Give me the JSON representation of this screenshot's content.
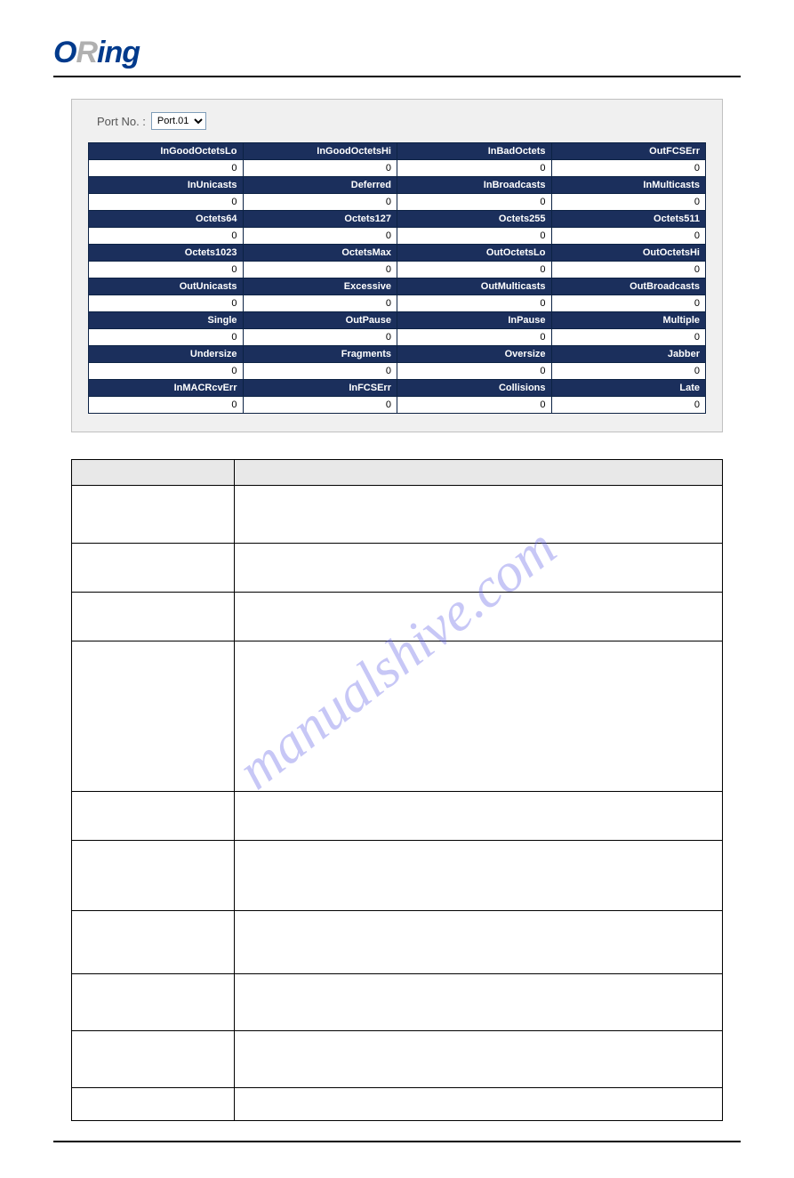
{
  "logo": {
    "o": "O",
    "r": "R",
    "rest": "ing"
  },
  "watermark": "manualshive.com",
  "port_selector": {
    "label": "Port No. :",
    "value": "Port.01"
  },
  "counters": {
    "rows": [
      {
        "headers": [
          "InGoodOctetsLo",
          "InGoodOctetsHi",
          "InBadOctets",
          "OutFCSErr"
        ],
        "values": [
          "0",
          "0",
          "0",
          "0"
        ]
      },
      {
        "headers": [
          "InUnicasts",
          "Deferred",
          "InBroadcasts",
          "InMulticasts"
        ],
        "values": [
          "0",
          "0",
          "0",
          "0"
        ]
      },
      {
        "headers": [
          "Octets64",
          "Octets127",
          "Octets255",
          "Octets511"
        ],
        "values": [
          "0",
          "0",
          "0",
          "0"
        ]
      },
      {
        "headers": [
          "Octets1023",
          "OctetsMax",
          "OutOctetsLo",
          "OutOctetsHi"
        ],
        "values": [
          "0",
          "0",
          "0",
          "0"
        ]
      },
      {
        "headers": [
          "OutUnicasts",
          "Excessive",
          "OutMulticasts",
          "OutBroadcasts"
        ],
        "values": [
          "0",
          "0",
          "0",
          "0"
        ]
      },
      {
        "headers": [
          "Single",
          "OutPause",
          "InPause",
          "Multiple"
        ],
        "values": [
          "0",
          "0",
          "0",
          "0"
        ]
      },
      {
        "headers": [
          "Undersize",
          "Fragments",
          "Oversize",
          "Jabber"
        ],
        "values": [
          "0",
          "0",
          "0",
          "0"
        ]
      },
      {
        "headers": [
          "InMACRcvErr",
          "InFCSErr",
          "Collisions",
          "Late"
        ],
        "values": [
          "0",
          "0",
          "0",
          "0"
        ]
      }
    ],
    "header_bg": "#1b2f5c",
    "header_fg": "#ffffff",
    "value_bg": "#ffffff",
    "border_color": "#0c2244"
  },
  "desc_table": {
    "columns": [
      "",
      ""
    ],
    "rows": [
      [
        "",
        ""
      ],
      [
        "",
        ""
      ],
      [
        "",
        ""
      ],
      [
        "",
        ""
      ],
      [
        "",
        ""
      ],
      [
        "",
        ""
      ],
      [
        "",
        ""
      ],
      [
        "",
        ""
      ],
      [
        "",
        ""
      ],
      [
        "",
        ""
      ]
    ]
  }
}
